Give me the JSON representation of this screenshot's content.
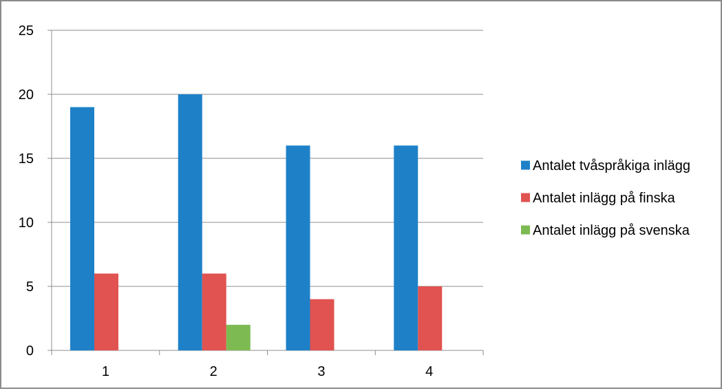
{
  "chart_data": {
    "type": "bar",
    "categories": [
      "1",
      "2",
      "3",
      "4"
    ],
    "series": [
      {
        "name": "Antalet tvåspråkiga inlägg",
        "values": [
          19,
          20,
          16,
          16
        ],
        "color": "#1e81c8"
      },
      {
        "name": "Antalet inlägg på finska",
        "values": [
          6,
          6,
          4,
          5
        ],
        "color": "#e05350"
      },
      {
        "name": "Antalet inlägg på svenska",
        "values": [
          0,
          2,
          0,
          0
        ],
        "color": "#7dbb52"
      }
    ],
    "ylim": [
      0,
      25
    ],
    "yticks": [
      0,
      5,
      10,
      15,
      20,
      25
    ],
    "grid": true,
    "legend": "right",
    "title": "",
    "xlabel": "",
    "ylabel": ""
  }
}
